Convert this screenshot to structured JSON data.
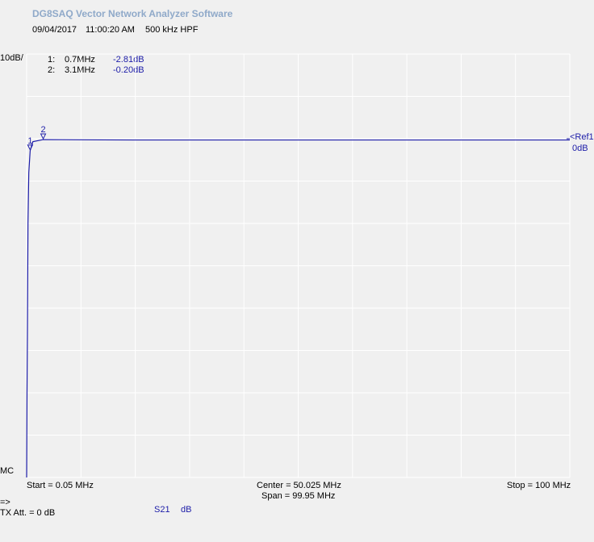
{
  "app": {
    "title": "DG8SAQ Vector Network Analyzer Software"
  },
  "header": {
    "date": "09/04/2017",
    "time": "11:00:20 AM",
    "description": "500 kHz HPF"
  },
  "scale": {
    "per_div": "10dB/"
  },
  "markers": [
    {
      "index": "1:",
      "freq": "0.7MHz",
      "value": "-2.81dB",
      "label": "1"
    },
    {
      "index": "2:",
      "freq": "3.1MHz",
      "value": "-0.20dB",
      "label": "2"
    }
  ],
  "reference": {
    "label": "<Ref1",
    "value": "0dB"
  },
  "footer": {
    "mc": "MC",
    "start": "Start = 0.05 MHz",
    "center": "Center = 50.025 MHz",
    "span": "Span = 99.95 MHz",
    "stop": "Stop = 100 MHz",
    "arrow": "=>",
    "tx_att": "TX Att.  = 0 dB",
    "trace_name": "S21",
    "trace_unit": "dB"
  },
  "colors": {
    "trace": "#1c1ca8",
    "grid": "#ffffff",
    "background": "#f0f0f0"
  },
  "chart_data": {
    "type": "line",
    "title": "500 kHz HPF",
    "xlabel": "",
    "ylabel": "",
    "xlim": [
      0.05,
      100
    ],
    "ylim": [
      -80,
      20
    ],
    "x_divisions": 10,
    "y_divisions": 10,
    "reference_level_db": 0,
    "grid": true,
    "series": [
      {
        "name": "S21",
        "x": [
          0.05,
          0.06,
          0.12,
          0.2,
          0.3,
          0.45,
          0.7,
          1.2,
          3.1,
          10,
          20,
          50,
          100
        ],
        "values": [
          -80,
          -78,
          -60,
          -45,
          -20,
          -8,
          -2.81,
          -0.7,
          -0.2,
          -0.25,
          -0.3,
          -0.3,
          -0.3
        ]
      }
    ],
    "markers": [
      {
        "label": "1",
        "x": 0.7,
        "y": -2.81
      },
      {
        "label": "2",
        "x": 3.1,
        "y": -0.2
      }
    ]
  }
}
